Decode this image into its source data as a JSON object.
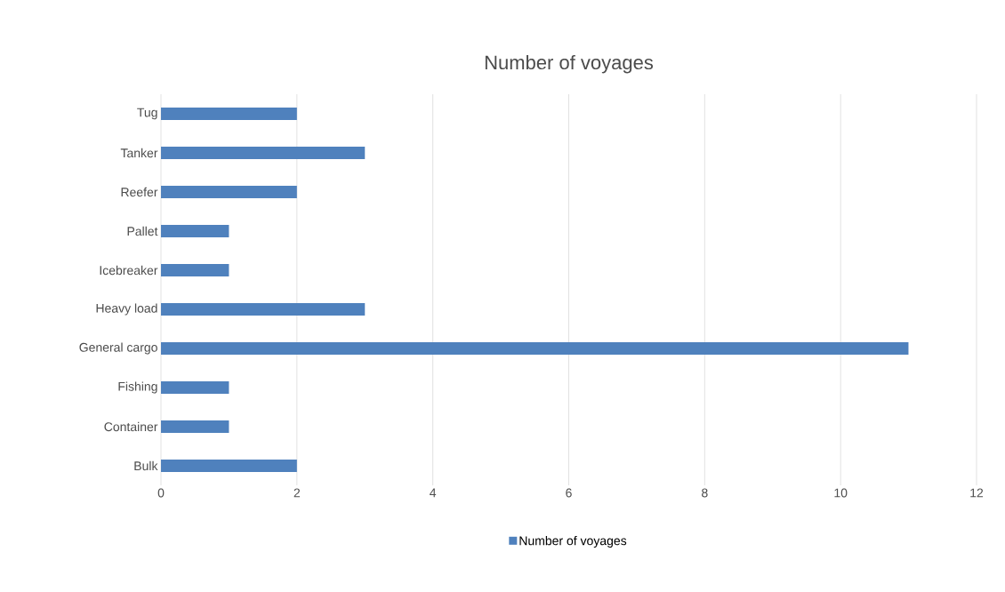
{
  "chart_data": {
    "type": "bar",
    "orientation": "horizontal",
    "title": "Number of voyages",
    "categories": [
      "Tug",
      "Tanker",
      "Reefer",
      "Pallet",
      "Icebreaker",
      "Heavy load",
      "General cargo",
      "Fishing",
      "Container",
      "Bulk"
    ],
    "series": [
      {
        "name": "Number of voyages",
        "color": "#4f81bd",
        "values": [
          2,
          3,
          2,
          1,
          1,
          3,
          11,
          1,
          1,
          2
        ]
      }
    ],
    "xlim": [
      0,
      12
    ],
    "xticks": [
      0,
      2,
      4,
      6,
      8,
      10,
      12
    ],
    "grid": "x",
    "legend": "bottom"
  }
}
